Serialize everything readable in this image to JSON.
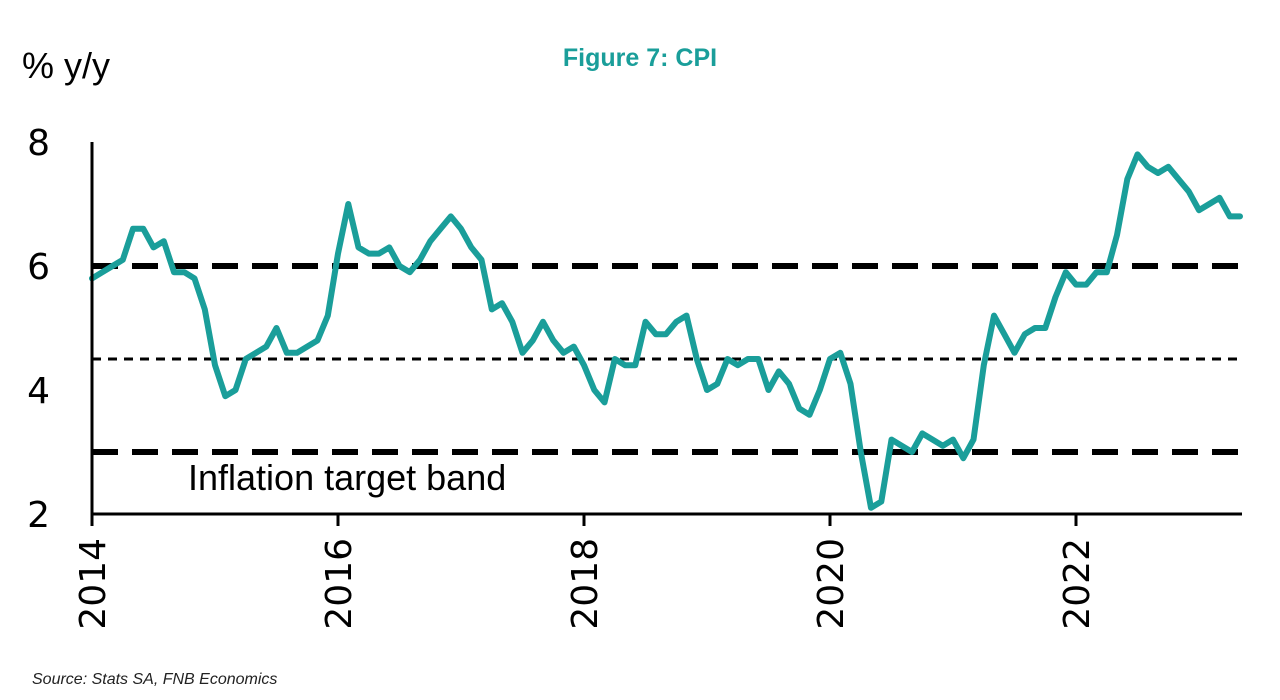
{
  "chart_data": {
    "type": "line",
    "title": "Figure 7: CPI",
    "ylabel": "% y/y",
    "xlabel": "",
    "source": "Source: Stats SA, FNB Economics",
    "annotation": "Inflation target band",
    "ylim": [
      2,
      8
    ],
    "xlim": [
      "2014-01",
      "2023-05"
    ],
    "y_ticks": [
      "2",
      "4",
      "6",
      "8"
    ],
    "x_ticks": [
      "2014",
      "2016",
      "2018",
      "2020",
      "2022"
    ],
    "grid": false,
    "colors": {
      "series": "#1a9e9a",
      "reference": "#000000",
      "title": "#1a9e9a"
    },
    "reference_lines": [
      {
        "value": 6,
        "style": "dashed"
      },
      {
        "value": 4.5,
        "style": "dotted"
      },
      {
        "value": 3,
        "style": "dashed"
      }
    ],
    "series": [
      {
        "x": [
          "2014-01",
          "2014-02",
          "2014-03",
          "2014-04",
          "2014-05",
          "2014-06",
          "2014-07",
          "2014-08",
          "2014-09",
          "2014-10",
          "2014-11",
          "2014-12",
          "2015-01",
          "2015-02",
          "2015-03",
          "2015-04",
          "2015-05",
          "2015-06",
          "2015-07",
          "2015-08",
          "2015-09",
          "2015-10",
          "2015-11",
          "2015-12",
          "2016-01",
          "2016-02",
          "2016-03",
          "2016-04",
          "2016-05",
          "2016-06",
          "2016-07",
          "2016-08",
          "2016-09",
          "2016-10",
          "2016-11",
          "2016-12",
          "2017-01",
          "2017-02",
          "2017-03",
          "2017-04",
          "2017-05",
          "2017-06",
          "2017-07",
          "2017-08",
          "2017-09",
          "2017-10",
          "2017-11",
          "2017-12",
          "2018-01",
          "2018-02",
          "2018-03",
          "2018-04",
          "2018-05",
          "2018-06",
          "2018-07",
          "2018-08",
          "2018-09",
          "2018-10",
          "2018-11",
          "2018-12",
          "2019-01",
          "2019-02",
          "2019-03",
          "2019-04",
          "2019-05",
          "2019-06",
          "2019-07",
          "2019-08",
          "2019-09",
          "2019-10",
          "2019-11",
          "2019-12",
          "2020-01",
          "2020-02",
          "2020-03",
          "2020-04",
          "2020-05",
          "2020-06",
          "2020-07",
          "2020-08",
          "2020-09",
          "2020-10",
          "2020-11",
          "2020-12",
          "2021-01",
          "2021-02",
          "2021-03",
          "2021-04",
          "2021-05",
          "2021-06",
          "2021-07",
          "2021-08",
          "2021-09",
          "2021-10",
          "2021-11",
          "2021-12",
          "2022-01",
          "2022-02",
          "2022-03",
          "2022-04",
          "2022-05",
          "2022-06",
          "2022-07",
          "2022-08",
          "2022-09",
          "2022-10",
          "2022-11",
          "2022-12",
          "2023-01",
          "2023-02",
          "2023-03",
          "2023-04",
          "2023-05"
        ],
        "values": [
          5.8,
          5.9,
          6.0,
          6.1,
          6.6,
          6.6,
          6.3,
          6.4,
          5.9,
          5.9,
          5.8,
          5.3,
          4.4,
          3.9,
          4.0,
          4.5,
          4.6,
          4.7,
          5.0,
          4.6,
          4.6,
          4.7,
          4.8,
          5.2,
          6.2,
          7.0,
          6.3,
          6.2,
          6.2,
          6.3,
          6.0,
          5.9,
          6.1,
          6.4,
          6.6,
          6.8,
          6.6,
          6.3,
          6.1,
          5.3,
          5.4,
          5.1,
          4.6,
          4.8,
          5.1,
          4.8,
          4.6,
          4.7,
          4.4,
          4.0,
          3.8,
          4.5,
          4.4,
          4.4,
          5.1,
          4.9,
          4.9,
          5.1,
          5.2,
          4.5,
          4.0,
          4.1,
          4.5,
          4.4,
          4.5,
          4.5,
          4.0,
          4.3,
          4.1,
          3.7,
          3.6,
          4.0,
          4.5,
          4.6,
          4.1,
          3.0,
          2.1,
          2.2,
          3.2,
          3.1,
          3.0,
          3.3,
          3.2,
          3.1,
          3.2,
          2.9,
          3.2,
          4.4,
          5.2,
          4.9,
          4.6,
          4.9,
          5.0,
          5.0,
          5.5,
          5.9,
          5.7,
          5.7,
          5.9,
          5.9,
          6.5,
          7.4,
          7.8,
          7.6,
          7.5,
          7.6,
          7.4,
          7.2,
          6.9,
          7.0,
          7.1,
          6.8,
          6.8
        ]
      }
    ]
  }
}
